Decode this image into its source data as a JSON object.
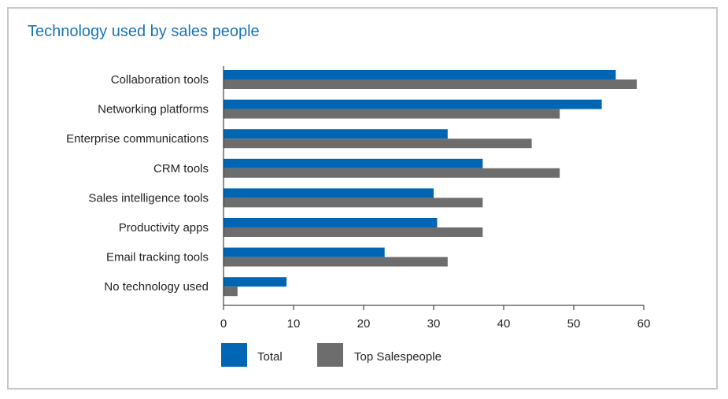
{
  "chart_data": {
    "type": "bar",
    "orientation": "horizontal",
    "title": "Technology used by sales people",
    "categories": [
      "Collaboration tools",
      "Networking platforms",
      "Enterprise communications",
      "CRM tools",
      "Sales intelligence tools",
      "Productivity apps",
      "Email tracking tools",
      "No technology used"
    ],
    "series": [
      {
        "name": "Total",
        "color": "#0066b3",
        "values": [
          56,
          54,
          32,
          37,
          30,
          30.5,
          23,
          9
        ]
      },
      {
        "name": "Top Salespeople",
        "color": "#6d6d6d",
        "values": [
          59,
          48,
          44,
          48,
          37,
          37,
          32,
          2
        ]
      }
    ],
    "xlim": [
      0,
      60
    ],
    "xticks": [
      0,
      10,
      20,
      30,
      40,
      50,
      60
    ],
    "grid": false,
    "legend": "bottom-left"
  }
}
